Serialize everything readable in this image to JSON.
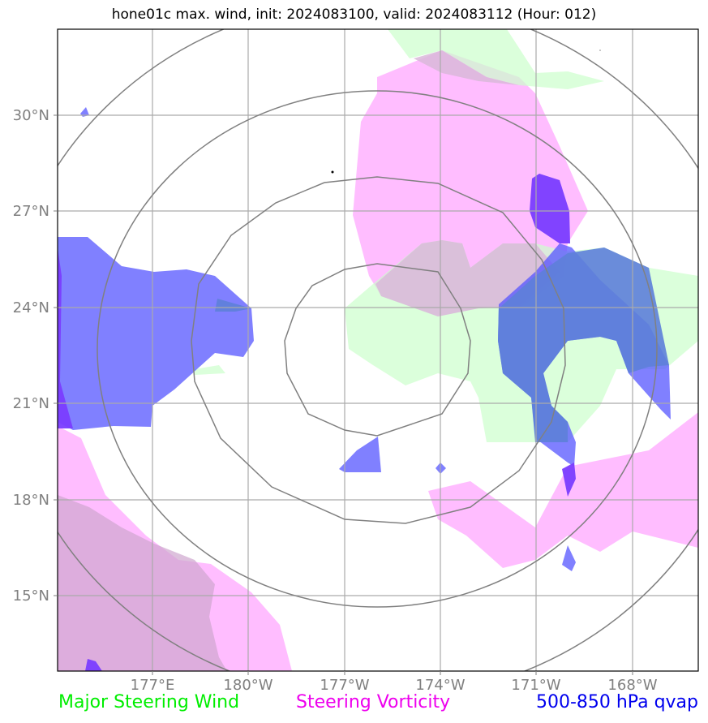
{
  "title": "hone01c max. wind, init: 2024083100, valid: 2024083112 (Hour: 012)",
  "lat_labels": [
    "30°N",
    "27°N",
    "24°N",
    "21°N",
    "18°N",
    "15°N"
  ],
  "lon_labels": [
    "177°E",
    "180°W",
    "177°W",
    "174°W",
    "171°W",
    "168°W"
  ],
  "legend": {
    "wind": "Major Steering Wind",
    "vorticity": "Steering Vorticity",
    "qvap": "500-850 hPa qvap"
  },
  "colors": {
    "wind": "#00ee00",
    "vorticity": "#ee00ee",
    "qvap": "#0000ee",
    "wind_fill": "#ccffcc",
    "vort_fill": "#ffb3ff",
    "qvap_fill": "#5555ff",
    "grid": "#aaaaaa",
    "rings": "#808080"
  }
}
